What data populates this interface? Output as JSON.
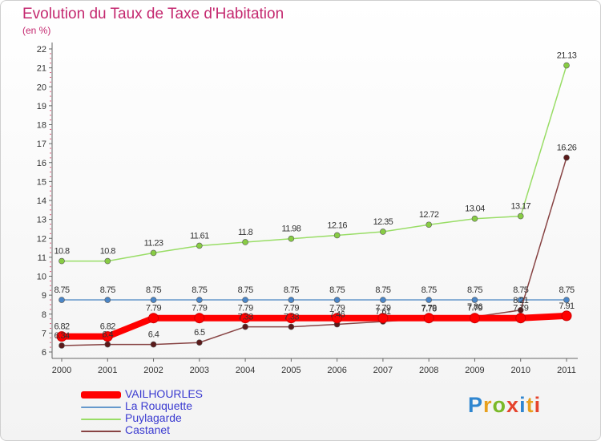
{
  "chart_data": {
    "type": "line",
    "title": "Evolution du Taux de Taxe d'Habitation",
    "subtitle": "(en %)",
    "x": [
      "2000",
      "2001",
      "2002",
      "2003",
      "2004",
      "2005",
      "2006",
      "2007",
      "2008",
      "2009",
      "2010",
      "2011"
    ],
    "ylim": [
      6,
      22
    ],
    "yticks": [
      "6",
      "7",
      "8",
      "9",
      "10",
      "11",
      "12",
      "13",
      "14",
      "15",
      "16",
      "17",
      "18",
      "19",
      "20",
      "21",
      "22"
    ],
    "grid": false,
    "series": [
      {
        "name": "VAILHOURLES",
        "color": "#ff0000",
        "values": [
          6.82,
          6.82,
          7.79,
          7.79,
          7.79,
          7.79,
          7.79,
          7.79,
          7.79,
          7.79,
          7.79,
          7.91
        ],
        "labels": [
          "6.82",
          "6.82",
          "7.79",
          "7.79",
          "7.79",
          "7.79",
          "7.79",
          "7.79",
          "7.79",
          "7.79",
          "7.79",
          "7.91"
        ]
      },
      {
        "name": "La Rouquette",
        "color": "#6699cc",
        "values": [
          8.75,
          8.75,
          8.75,
          8.75,
          8.75,
          8.75,
          8.75,
          8.75,
          8.75,
          8.75,
          8.75,
          8.75
        ],
        "labels": [
          "8.75",
          "8.75",
          "8.75",
          "8.75",
          "8.75",
          "8.75",
          "8.75",
          "8.75",
          "8.75",
          "8.75",
          "8.75",
          "8.75"
        ]
      },
      {
        "name": "Puylagarde",
        "color": "#99dd66",
        "values": [
          10.8,
          10.8,
          11.23,
          11.61,
          11.8,
          11.98,
          12.16,
          12.35,
          12.72,
          13.04,
          13.17,
          21.13
        ],
        "labels": [
          "10.8",
          "10.8",
          "11.23",
          "11.61",
          "11.8",
          "11.98",
          "12.16",
          "12.35",
          "12.72",
          "13.04",
          "13.17",
          "21.13"
        ]
      },
      {
        "name": "Castanet",
        "color": "#884444",
        "values": [
          6.34,
          6.4,
          6.4,
          6.5,
          7.33,
          7.33,
          7.46,
          7.61,
          7.76,
          7.86,
          8.21,
          16.26
        ],
        "labels": [
          "6.34",
          "6.4",
          "6.4",
          "6.5",
          "7.33",
          "7.33",
          "7.46",
          "7.61",
          "7.76",
          "7.86",
          "8.21",
          "16.26"
        ]
      }
    ],
    "legend_position": "bottom-left"
  },
  "branding": {
    "logo_letters": [
      "P",
      "r",
      "o",
      "x",
      "i",
      "t",
      "i"
    ]
  }
}
